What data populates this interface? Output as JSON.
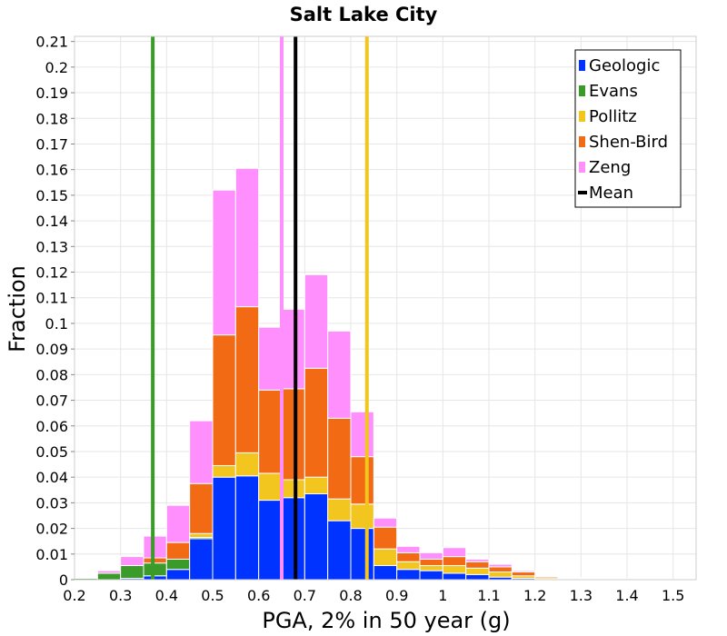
{
  "chart_data": {
    "type": "bar",
    "stacked": true,
    "title": "Salt Lake City",
    "xlabel": "PGA, 2% in 50 year (g)",
    "ylabel": "Fraction",
    "xlim": [
      0.2,
      1.55
    ],
    "ylim": [
      0,
      0.212
    ],
    "bin_width": 0.05,
    "grid": true,
    "legend_position": "top-right",
    "x_ticks": [
      "0.2",
      "0.3",
      "0.4",
      "0.5",
      "0.6",
      "0.7",
      "0.8",
      "0.9",
      "1",
      "1.1",
      "1.2",
      "1.3",
      "1.4",
      "1.5"
    ],
    "y_ticks": [
      "0",
      "0.01",
      "0.02",
      "0.03",
      "0.04",
      "0.05",
      "0.06",
      "0.07",
      "0.08",
      "0.09",
      "0.1",
      "0.11",
      "0.12",
      "0.13",
      "0.14",
      "0.15",
      "0.16",
      "0.17",
      "0.18",
      "0.19",
      "0.2",
      "0.21"
    ],
    "bin_starts": [
      0.2,
      0.25,
      0.3,
      0.35,
      0.4,
      0.45,
      0.5,
      0.55,
      0.6,
      0.65,
      0.7,
      0.75,
      0.8,
      0.85,
      0.9,
      0.95,
      1.0,
      1.05,
      1.1,
      1.15,
      1.2,
      1.25,
      1.3,
      1.35,
      1.4,
      1.45,
      1.5
    ],
    "series": [
      {
        "name": "Geologic",
        "color": "#0033ff",
        "values": [
          0,
          0,
          0.0005,
          0.0015,
          0.004,
          0.016,
          0.04,
          0.0405,
          0.031,
          0.032,
          0.0335,
          0.023,
          0.02,
          0.0055,
          0.004,
          0.0035,
          0.0025,
          0.002,
          0.001,
          0.0005,
          0.0002,
          0.0001,
          0,
          0,
          0,
          0,
          0
        ]
      },
      {
        "name": "Evans",
        "color": "#3a9a2a",
        "values": [
          0.0005,
          0.0025,
          0.005,
          0.005,
          0.004,
          0.0005,
          0,
          0,
          0,
          0,
          0,
          0,
          0,
          0,
          0,
          0,
          0,
          0,
          0,
          0,
          0,
          0,
          0,
          0,
          0,
          0,
          0
        ]
      },
      {
        "name": "Pollitz",
        "color": "#f2c51f",
        "values": [
          0,
          0,
          0,
          0,
          0,
          0.0015,
          0.0045,
          0.009,
          0.0105,
          0.007,
          0.0065,
          0.0085,
          0.0095,
          0.0065,
          0.003,
          0.002,
          0.003,
          0.0025,
          0.002,
          0.001,
          0.0005,
          0.0002,
          0.0002,
          0.0001,
          0.0001,
          0.0001,
          0
        ]
      },
      {
        "name": "Shen-Bird",
        "color": "#f26a14",
        "values": [
          0,
          0,
          0,
          0.002,
          0.0065,
          0.0195,
          0.051,
          0.057,
          0.0325,
          0.0355,
          0.0425,
          0.0315,
          0.0185,
          0.0085,
          0.0035,
          0.0025,
          0.0035,
          0.0025,
          0.002,
          0.0015,
          0.0005,
          0.0002,
          0.0001,
          0.0001,
          0.0001,
          0,
          0
        ]
      },
      {
        "name": "Zeng",
        "color": "#fe8ffd",
        "values": [
          0,
          0.001,
          0.0035,
          0.0085,
          0.0145,
          0.0245,
          0.0565,
          0.054,
          0.0245,
          0.031,
          0.0365,
          0.034,
          0.0175,
          0.0035,
          0.0025,
          0.0025,
          0.0035,
          0.001,
          0.001,
          0.0005,
          0.0003,
          0.0003,
          0.0002,
          0.0002,
          0.0002,
          0.0001,
          0.0001
        ]
      }
    ],
    "vertical_lines": [
      {
        "name": "Evans",
        "color": "#3a9a2a",
        "x": 0.37
      },
      {
        "name": "Zeng",
        "color": "#fe8ffd",
        "x": 0.65
      },
      {
        "name": "Pollitz",
        "color": "#f2c51f",
        "x": 0.835
      },
      {
        "name": "Mean",
        "color": "#000000",
        "x": 0.68
      }
    ],
    "legend": [
      {
        "label": "Geologic",
        "color": "#0033ff",
        "kind": "box"
      },
      {
        "label": "Evans",
        "color": "#3a9a2a",
        "kind": "box"
      },
      {
        "label": "Pollitz",
        "color": "#f2c51f",
        "kind": "box"
      },
      {
        "label": "Shen-Bird",
        "color": "#f26a14",
        "kind": "box"
      },
      {
        "label": "Zeng",
        "color": "#fe8ffd",
        "kind": "box"
      },
      {
        "label": "Mean",
        "color": "#000000",
        "kind": "line"
      }
    ]
  }
}
